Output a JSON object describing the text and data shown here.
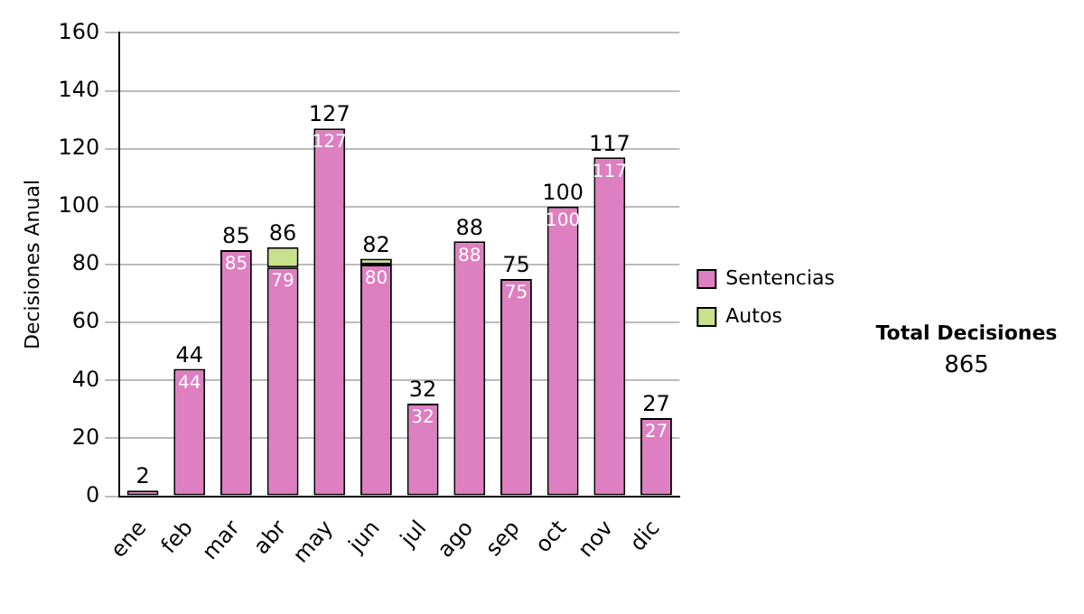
{
  "chart_data": {
    "type": "bar",
    "ylabel": "Decisiones Anual",
    "categories": [
      "ene",
      "feb",
      "mar",
      "abr",
      "may",
      "jun",
      "jul",
      "ago",
      "sep",
      "oct",
      "nov",
      "dic"
    ],
    "series": [
      {
        "name": "Sentencias",
        "color": "#dd7fc0",
        "values": [
          2,
          44,
          85,
          79,
          127,
          80,
          32,
          88,
          75,
          100,
          117,
          27
        ],
        "value_labels": [
          null,
          "44",
          "85",
          "79",
          "127",
          "80",
          "32",
          "88",
          "75",
          "100",
          "117",
          "27"
        ]
      },
      {
        "name": "Autos",
        "color": "#c9e08c",
        "values": [
          0,
          0,
          0,
          7,
          0,
          2,
          0,
          0,
          0,
          0,
          0,
          0
        ]
      }
    ],
    "stacked": true,
    "totals": [
      "2",
      "44",
      "85",
      "86",
      "127",
      "82",
      "32",
      "88",
      "75",
      "100",
      "117",
      "27"
    ],
    "ylim": [
      0,
      160
    ],
    "yticks": [
      0,
      20,
      40,
      60,
      80,
      100,
      120,
      140,
      160
    ],
    "grid": "y",
    "legend": "right",
    "annotations": [
      "Total Decisiones",
      "865"
    ]
  }
}
